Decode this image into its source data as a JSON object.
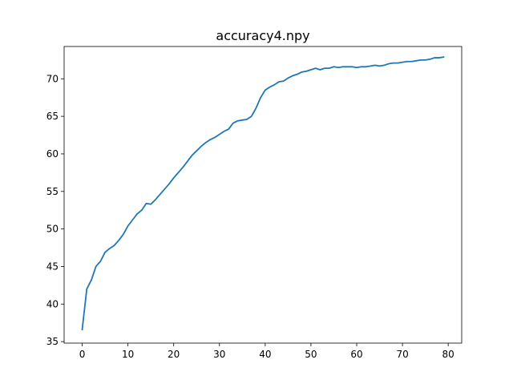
{
  "chart_data": {
    "type": "line",
    "title": "accuracy4.npy",
    "xlabel": "",
    "ylabel": "",
    "xlim": [
      -3.95,
      82.95
    ],
    "ylim": [
      34.8,
      74.3
    ],
    "xticks": [
      0,
      10,
      20,
      30,
      40,
      50,
      60,
      70,
      80
    ],
    "yticks": [
      35,
      40,
      45,
      50,
      55,
      60,
      65,
      70
    ],
    "grid": false,
    "line_color": "#1f77b4",
    "series": [
      {
        "x": [
          0,
          1,
          2,
          3,
          4,
          5,
          6,
          7,
          8,
          9,
          10,
          11,
          12,
          13,
          14,
          15,
          16,
          17,
          18,
          19,
          20,
          21,
          22,
          23,
          24,
          25,
          26,
          27,
          28,
          29,
          30,
          31,
          32,
          33,
          34,
          35,
          36,
          37,
          38,
          39,
          40,
          41,
          42,
          43,
          44,
          45,
          46,
          47,
          48,
          49,
          50,
          51,
          52,
          53,
          54,
          55,
          56,
          57,
          58,
          59,
          60,
          61,
          62,
          63,
          64,
          65,
          66,
          67,
          68,
          69,
          70,
          71,
          72,
          73,
          74,
          75,
          76,
          77,
          78,
          79
        ],
        "values": [
          36.6,
          42.0,
          43.2,
          45.0,
          45.7,
          46.9,
          47.4,
          47.8,
          48.5,
          49.3,
          50.4,
          51.2,
          52.0,
          52.5,
          53.4,
          53.3,
          53.9,
          54.6,
          55.3,
          56.0,
          56.8,
          57.5,
          58.2,
          59.0,
          59.8,
          60.4,
          61.0,
          61.5,
          61.9,
          62.2,
          62.6,
          63.0,
          63.3,
          64.1,
          64.4,
          64.5,
          64.6,
          65.0,
          66.1,
          67.5,
          68.5,
          68.9,
          69.2,
          69.6,
          69.7,
          70.1,
          70.4,
          70.6,
          70.9,
          71.0,
          71.2,
          71.4,
          71.2,
          71.4,
          71.4,
          71.6,
          71.5,
          71.6,
          71.6,
          71.6,
          71.5,
          71.6,
          71.6,
          71.7,
          71.8,
          71.7,
          71.8,
          72.0,
          72.1,
          72.1,
          72.2,
          72.3,
          72.3,
          72.4,
          72.5,
          72.5,
          72.6,
          72.8,
          72.8,
          72.9
        ]
      }
    ]
  }
}
